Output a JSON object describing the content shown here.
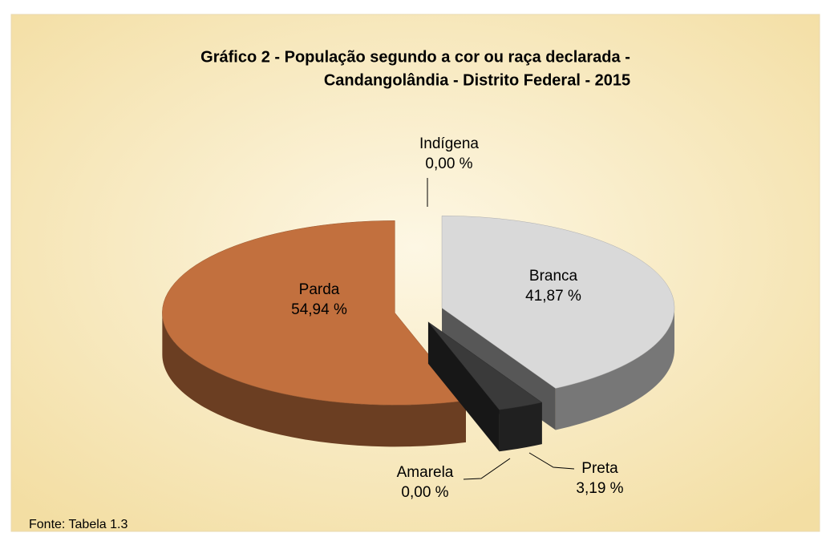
{
  "chart_data": {
    "type": "pie",
    "title": [
      "Gráfico 2 - População segundo a cor ou raça declarada -",
      "Candangolândia - Distrito Federal - 2015"
    ],
    "categories": [
      "Branca",
      "Preta",
      "Amarela",
      "Parda",
      "Indígena"
    ],
    "values": [
      41.87,
      3.19,
      0.0,
      54.94,
      0.0
    ],
    "value_labels": [
      "41,87 %",
      "3,19 %",
      "0,00 %",
      "54,94 %",
      "0,00 %"
    ],
    "colors": [
      "#d9d9d9",
      "#3a3a3a",
      "#6b6b00",
      "#c2703e",
      "#9e7fb0"
    ],
    "source": "Fonte: Tabela 1.3"
  }
}
